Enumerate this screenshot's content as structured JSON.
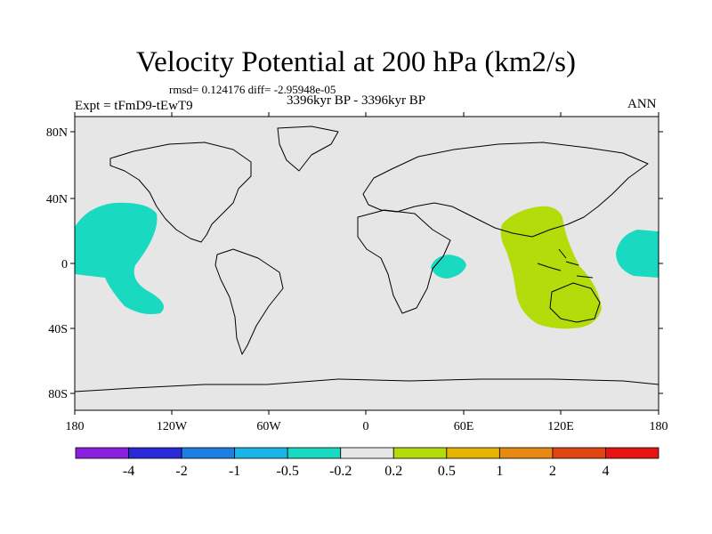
{
  "title": "Velocity Potential at 200 hPa (km2/s)",
  "stats": "rmsd= 0.124176 diff= -2.95948e-05",
  "experiment": "Expt = tFmD9-tEwT9",
  "period": "3396kyr BP - 3396kyr BP",
  "season": "ANN",
  "lat_ticks": [
    "80N",
    "40N",
    "0",
    "40S",
    "80S"
  ],
  "lon_ticks": [
    "180",
    "120W",
    "60W",
    "0",
    "60E",
    "120E",
    "180"
  ],
  "colorbar": {
    "labels": [
      "-4",
      "-2",
      "-1",
      "-0.5",
      "-0.2",
      "0.2",
      "0.5",
      "1",
      "2",
      "4"
    ],
    "colors": [
      "#8a1fe0",
      "#2a2ad8",
      "#1e7fe0",
      "#1ab4e6",
      "#19d9c0",
      "#e6e6e6",
      "#b4dc0a",
      "#e6b400",
      "#e68a14",
      "#e04614",
      "#e61414"
    ]
  },
  "map": {
    "background_color": "#e6e6e6",
    "negative_color": "#19d9c0",
    "positive_color": "#b4dc0a"
  }
}
